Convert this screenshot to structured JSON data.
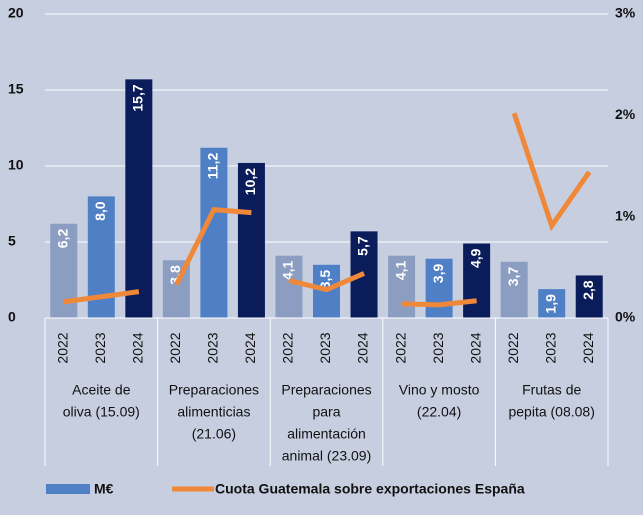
{
  "chart_data": {
    "type": "bar",
    "categories": [
      "2022",
      "2023",
      "2024",
      "2022",
      "2023",
      "2024",
      "2022",
      "2023",
      "2024",
      "2022",
      "2023",
      "2024",
      "2022",
      "2023",
      "2024"
    ],
    "groups": [
      [
        "Aceite de",
        "oliva  (15.09)"
      ],
      [
        "Preparaciones",
        "alimenticias",
        "(21.06)"
      ],
      [
        "Preparaciones",
        "para",
        "alimentación",
        "animal  (23.09)"
      ],
      [
        "Vino y mosto",
        "(22.04)"
      ],
      [
        "Frutas de",
        "pepita (08.08)"
      ]
    ],
    "year_colors": [
      "#8c9dc2",
      "#4f80c6",
      "#0b1c5a"
    ],
    "series": [
      {
        "name": "M€",
        "color": "#4f80c6",
        "values": [
          6.2,
          8.0,
          15.7,
          3.8,
          11.2,
          10.2,
          4.1,
          3.5,
          5.7,
          4.1,
          3.9,
          4.9,
          3.7,
          1.9,
          2.8
        ],
        "value_labels": [
          "6,2",
          "8,0",
          "15,7",
          "3,8",
          "11,2",
          "10,2",
          "4,1",
          "3,5",
          "5,7",
          "4,1",
          "3,9",
          "4,9",
          "3,7",
          "1,9",
          "2,8"
        ]
      },
      {
        "name": "Cuota Guatemala sobre exportaciones España",
        "color": "#f0883a",
        "axis": "y2",
        "type": "line",
        "values": [
          0.16,
          0.21,
          0.26,
          0.33,
          1.07,
          1.04,
          0.37,
          0.28,
          0.44,
          0.14,
          0.13,
          0.17,
          2.02,
          0.91,
          1.44
        ]
      }
    ],
    "ylim": [
      0,
      20
    ],
    "yticks": [
      0,
      5,
      10,
      15,
      20
    ],
    "y2lim": [
      0,
      3
    ],
    "y2ticks": [
      {
        "value": 0,
        "label": "0%"
      },
      {
        "value": 1,
        "label": "1%"
      },
      {
        "value": 2,
        "label": "2%"
      },
      {
        "value": 3,
        "label": "3%"
      }
    ],
    "grid": true
  }
}
